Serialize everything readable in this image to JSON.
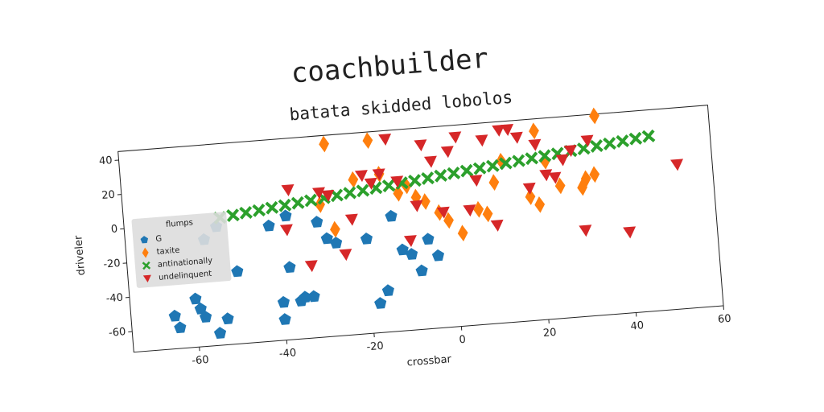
{
  "chart_data": {
    "type": "scatter",
    "title": "coachbuilder",
    "subtitle": "batata skidded lobolos",
    "x_label": "crossbar",
    "y_label": "driveler",
    "xlim": [
      -75,
      60
    ],
    "ylim": [
      -72,
      45
    ],
    "xticks": [
      -60,
      -40,
      -20,
      0,
      20,
      40,
      60
    ],
    "yticks": [
      -60,
      -40,
      -20,
      0,
      20,
      40
    ],
    "grid": false,
    "legend": "center left",
    "legend_title": "flumps",
    "series": [
      {
        "name": "G",
        "color": "#1f77b4",
        "marker": "pentagon",
        "x": [
          -65,
          -64,
          -60,
          -59,
          -58,
          -55,
          -53,
          -50,
          -57,
          -42,
          -40,
          -38,
          -36,
          -35,
          -33,
          -31,
          -29,
          -27,
          -40,
          -20,
          -18,
          -16,
          -14,
          -12,
          -10,
          -8,
          -6,
          -4,
          -38,
          -54
        ],
        "values": [
          -53,
          -60,
          -44,
          -50,
          -55,
          -65,
          -57,
          -30,
          -10,
          -5,
          -60,
          -30,
          -50,
          -48,
          -48,
          -5,
          -15,
          -18,
          -50,
          -17,
          -55,
          -48,
          -5,
          -25,
          -28,
          -38,
          -20,
          -30,
          0,
          -3
        ]
      },
      {
        "name": "taxite",
        "color": "#ff7f0e",
        "marker": "diamond",
        "x": [
          -28,
          -27,
          -22,
          -18,
          -16,
          -12,
          -10,
          -8,
          -6,
          -3,
          -1,
          2,
          6,
          8,
          10,
          12,
          18,
          20,
          22,
          25,
          30,
          31,
          33,
          34,
          20,
          -30
        ],
        "values": [
          40,
          -10,
          18,
          40,
          20,
          8,
          12,
          5,
          2,
          -5,
          -10,
          -18,
          -5,
          -8,
          10,
          22,
          0,
          38,
          20,
          5,
          3,
          8,
          10,
          44,
          -5,
          5
        ]
      },
      {
        "name": "antinationally",
        "color": "#2ca02c",
        "marker": "x",
        "x": [
          -53,
          -50,
          -47,
          -44,
          -41,
          -38,
          -35,
          -32,
          -29,
          -26,
          -23,
          -20,
          -17,
          -14,
          -11,
          -8,
          -5,
          -2,
          1,
          4,
          7,
          10,
          13,
          16,
          19,
          22,
          25,
          28,
          31,
          34,
          37,
          40,
          43,
          46
        ],
        "values": [
          2,
          2.8,
          3.7,
          4.5,
          5.4,
          6.2,
          7.0,
          7.9,
          8.7,
          9.6,
          10.4,
          11.2,
          12.1,
          12.9,
          13.8,
          14.6,
          15.4,
          16.3,
          17.1,
          18.0,
          18.8,
          19.6,
          20.5,
          21.3,
          22.2,
          23.0,
          23.8,
          24.7,
          25.5,
          26.4,
          27.2,
          28.0,
          28.9,
          29.7
        ]
      },
      {
        "name": "undelinquent",
        "color": "#d62728",
        "marker": "triangle-down",
        "x": [
          -38,
          -37,
          -33,
          -30,
          -28,
          -25,
          -23,
          -20,
          -18,
          -16,
          -14,
          -12,
          -10,
          -8,
          -6,
          -4,
          -2,
          0,
          2,
          4,
          6,
          8,
          10,
          12,
          14,
          16,
          18,
          20,
          22,
          24,
          26,
          28,
          30,
          32,
          40,
          52
        ],
        "values": [
          -8,
          15,
          -30,
          12,
          10,
          -25,
          -5,
          20,
          15,
          20,
          40,
          15,
          -20,
          0,
          35,
          25,
          -5,
          30,
          38,
          -5,
          12,
          35,
          -15,
          40,
          40,
          35,
          5,
          30,
          12,
          10,
          20,
          25,
          -22,
          30,
          -25,
          12
        ]
      }
    ]
  }
}
